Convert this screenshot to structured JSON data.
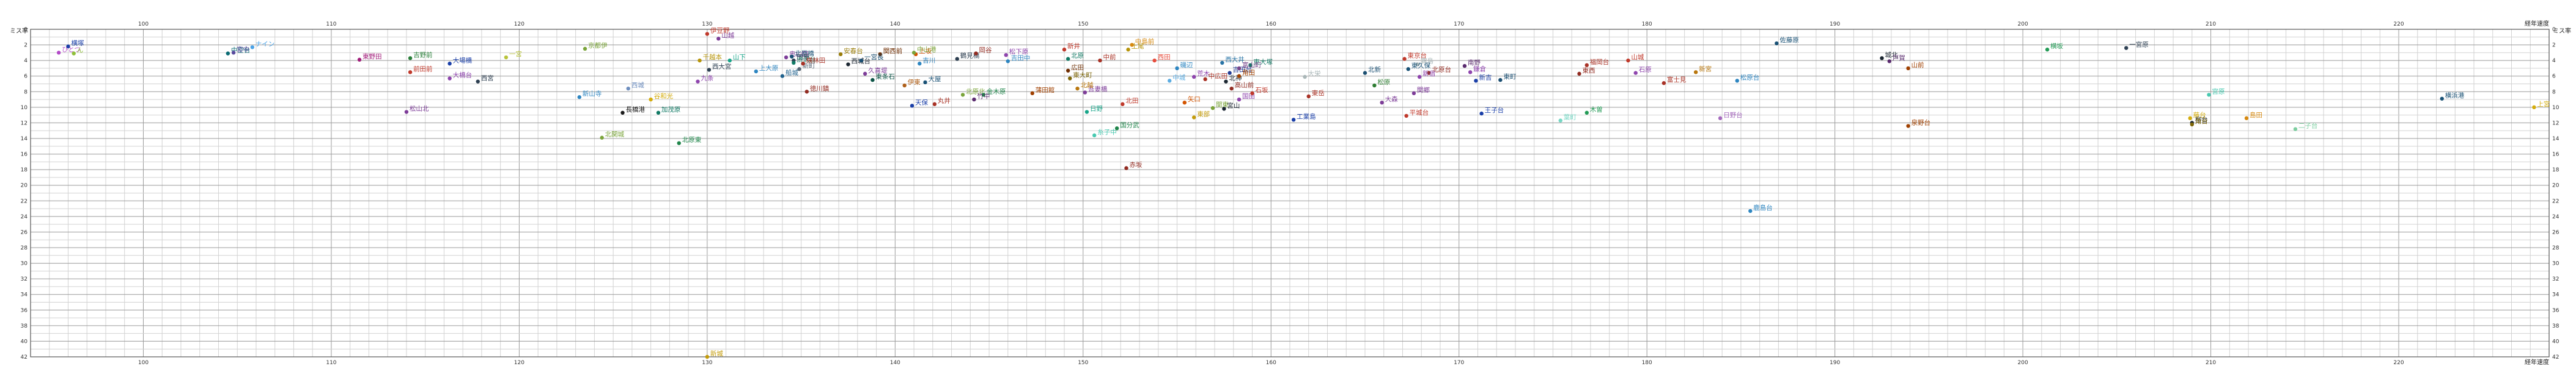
{
  "chart_data": {
    "type": "scatter",
    "title": "",
    "xlabel": "経年速度",
    "ylabel": "ミス率",
    "xlim": [
      94,
      228
    ],
    "ylim": [
      0,
      42
    ],
    "x_ticks": [
      100,
      110,
      120,
      130,
      140,
      150,
      160,
      170,
      180,
      190,
      200,
      210,
      220
    ],
    "y_ticks": [
      0,
      2,
      4,
      6,
      8,
      10,
      12,
      14,
      16,
      18,
      20,
      22,
      24,
      26,
      28,
      30,
      32,
      34,
      36,
      38,
      40,
      42
    ],
    "grid": true,
    "series": [
      {
        "label": "横塚",
        "x": 96.0,
        "y": 2.2,
        "color": "#1a3fa8"
      },
      {
        "label": "ひとつ",
        "x": 95.5,
        "y": 3.0,
        "color": "#b34bc8"
      },
      {
        "label": "ん",
        "x": 96.3,
        "y": 3.1,
        "color": "#8fbf3a"
      },
      {
        "label": "中空台",
        "x": 104.5,
        "y": 3.1,
        "color": "#0a6b74"
      },
      {
        "label": "ナイン",
        "x": 105.8,
        "y": 2.3,
        "color": "#4aa3e8"
      },
      {
        "label": "宮中",
        "x": 104.8,
        "y": 3.0,
        "color": "#5a4b9e"
      },
      {
        "label": "東野田",
        "x": 111.5,
        "y": 3.9,
        "color": "#a11c7a"
      },
      {
        "label": "吉野前",
        "x": 114.2,
        "y": 3.7,
        "color": "#2a7f3a"
      },
      {
        "label": "大場橋",
        "x": 116.3,
        "y": 4.4,
        "color": "#1a3fa8"
      },
      {
        "label": "前田前",
        "x": 114.2,
        "y": 5.5,
        "color": "#c0392b"
      },
      {
        "label": "大橋台",
        "x": 116.3,
        "y": 6.3,
        "color": "#8e44ad"
      },
      {
        "label": "一宮",
        "x": 119.3,
        "y": 3.6,
        "color": "#b8c33a"
      },
      {
        "label": "西宮",
        "x": 117.8,
        "y": 6.7,
        "color": "#2c3e50"
      },
      {
        "label": "松山北",
        "x": 114.0,
        "y": 10.6,
        "color": "#7d3c98"
      },
      {
        "label": "京都伊",
        "x": 123.5,
        "y": 2.5,
        "color": "#7aa43a"
      },
      {
        "label": "新山寺",
        "x": 123.2,
        "y": 8.7,
        "color": "#2e86c1"
      },
      {
        "label": "西城",
        "x": 125.8,
        "y": 7.6,
        "color": "#6f8fbf"
      },
      {
        "label": "長橋港",
        "x": 125.5,
        "y": 10.7,
        "color": "#1b1b1b"
      },
      {
        "label": "加茂原",
        "x": 127.4,
        "y": 10.7,
        "color": "#117a65"
      },
      {
        "label": "北関城",
        "x": 124.4,
        "y": 13.9,
        "color": "#7aa43a"
      },
      {
        "label": "谷和光",
        "x": 127.0,
        "y": 9.0,
        "color": "#d4ac0d"
      },
      {
        "label": "北原東",
        "x": 128.5,
        "y": 14.6,
        "color": "#1e8449"
      },
      {
        "label": "九条",
        "x": 129.5,
        "y": 6.7,
        "color": "#8e44ad"
      },
      {
        "label": "伊豆野",
        "x": 130.0,
        "y": 0.6,
        "color": "#c0392b"
      },
      {
        "label": "山越",
        "x": 130.6,
        "y": 1.2,
        "color": "#7d3c98"
      },
      {
        "label": "千越本",
        "x": 129.6,
        "y": 4.0,
        "color": "#b7950b"
      },
      {
        "label": "西大宮",
        "x": 130.1,
        "y": 5.2,
        "color": "#2e4053"
      },
      {
        "label": "上大原",
        "x": 132.6,
        "y": 5.4,
        "color": "#2e86c1"
      },
      {
        "label": "奥山田",
        "x": 134.2,
        "y": 3.6,
        "color": "#7d3c98"
      },
      {
        "label": "北原橋",
        "x": 134.5,
        "y": 3.5,
        "color": "#1a5276"
      },
      {
        "label": "山下",
        "x": 131.2,
        "y": 4.0,
        "color": "#17a589"
      },
      {
        "label": "田原",
        "x": 134.6,
        "y": 4.0,
        "color": "#2c3e50"
      },
      {
        "label": "渋沢台",
        "x": 134.6,
        "y": 4.3,
        "color": "#117a65"
      },
      {
        "label": "新町",
        "x": 134.9,
        "y": 5.1,
        "color": "#566573"
      },
      {
        "label": "船城",
        "x": 134.0,
        "y": 6.0,
        "color": "#1f618d"
      },
      {
        "label": "横林田",
        "x": 135.1,
        "y": 4.4,
        "color": "#a93226"
      },
      {
        "label": "徳川鎮",
        "x": 135.3,
        "y": 8.0,
        "color": "#922b21"
      },
      {
        "label": "安春台",
        "x": 137.1,
        "y": 3.2,
        "color": "#9a7d0a"
      },
      {
        "label": "西城台",
        "x": 137.5,
        "y": 4.5,
        "color": "#1b2631"
      },
      {
        "label": "久喜堤",
        "x": 138.4,
        "y": 5.7,
        "color": "#7d3c98"
      },
      {
        "label": "関西前",
        "x": 139.2,
        "y": 3.2,
        "color": "#6e2c00"
      },
      {
        "label": "東条石",
        "x": 138.8,
        "y": 6.5,
        "color": "#0b5345"
      },
      {
        "label": "一宮長",
        "x": 138.2,
        "y": 4.0,
        "color": "#1b4f72"
      },
      {
        "label": "伊東",
        "x": 140.5,
        "y": 7.2,
        "color": "#af601a"
      },
      {
        "label": "上坂",
        "x": 141.1,
        "y": 3.2,
        "color": "#d35400"
      },
      {
        "label": "中山港",
        "x": 141.0,
        "y": 3.0,
        "color": "#7aa43a"
      },
      {
        "label": "吉川",
        "x": 141.3,
        "y": 4.4,
        "color": "#2e86c1"
      },
      {
        "label": "大屋",
        "x": 141.6,
        "y": 6.8,
        "color": "#1a5276"
      },
      {
        "label": "丸井",
        "x": 142.1,
        "y": 9.6,
        "color": "#a93226"
      },
      {
        "label": "天保",
        "x": 140.9,
        "y": 9.8,
        "color": "#1a3fa8"
      },
      {
        "label": "鶴見橋",
        "x": 143.3,
        "y": 3.8,
        "color": "#2c3e50"
      },
      {
        "label": "北原北",
        "x": 143.6,
        "y": 8.4,
        "color": "#7aa43a"
      },
      {
        "label": "岡谷",
        "x": 144.3,
        "y": 3.1,
        "color": "#922b21"
      },
      {
        "label": "金木原",
        "x": 144.7,
        "y": 8.4,
        "color": "#1e8449"
      },
      {
        "label": "竹中",
        "x": 144.2,
        "y": 9.0,
        "color": "#5b2c6f"
      },
      {
        "label": "松下原",
        "x": 145.9,
        "y": 3.3,
        "color": "#8e44ad"
      },
      {
        "label": "吉田中",
        "x": 146.0,
        "y": 4.1,
        "color": "#2e86c1"
      },
      {
        "label": "蒲田館",
        "x": 147.3,
        "y": 8.2,
        "color": "#a04000"
      },
      {
        "label": "新井",
        "x": 149.0,
        "y": 2.6,
        "color": "#c0392b"
      },
      {
        "label": "北原",
        "x": 149.2,
        "y": 3.8,
        "color": "#117a65"
      },
      {
        "label": "広田",
        "x": 149.2,
        "y": 5.3,
        "color": "#6e2c00"
      },
      {
        "label": "東大町",
        "x": 149.3,
        "y": 6.3,
        "color": "#7d6608"
      },
      {
        "label": "吾妻橋",
        "x": 150.1,
        "y": 8.1,
        "color": "#7d3c98"
      },
      {
        "label": "北越",
        "x": 149.7,
        "y": 7.6,
        "color": "#b9770e"
      },
      {
        "label": "中前",
        "x": 150.9,
        "y": 4.0,
        "color": "#a93226"
      },
      {
        "label": "中島前",
        "x": 152.6,
        "y": 2.0,
        "color": "#d68910"
      },
      {
        "label": "上尾",
        "x": 152.4,
        "y": 2.6,
        "color": "#b7950b"
      },
      {
        "label": "北田",
        "x": 152.1,
        "y": 9.6,
        "color": "#c0392b"
      },
      {
        "label": "日野",
        "x": 150.2,
        "y": 10.6,
        "color": "#17a589"
      },
      {
        "label": "糸子中",
        "x": 150.6,
        "y": 13.6,
        "color": "#48c9b0"
      },
      {
        "label": "国分武",
        "x": 151.8,
        "y": 12.7,
        "color": "#1e8449"
      },
      {
        "label": "赤坂",
        "x": 152.3,
        "y": 17.8,
        "color": "#922b21"
      },
      {
        "label": "西田",
        "x": 153.8,
        "y": 4.0,
        "color": "#e74c3c"
      },
      {
        "label": "磯辺",
        "x": 155.0,
        "y": 5.0,
        "color": "#2e86c1"
      },
      {
        "label": "中城",
        "x": 154.6,
        "y": 6.6,
        "color": "#5dade2"
      },
      {
        "label": "荒木",
        "x": 155.9,
        "y": 6.1,
        "color": "#8e44ad"
      },
      {
        "label": "中広田",
        "x": 156.5,
        "y": 6.4,
        "color": "#a93226"
      },
      {
        "label": "矢口",
        "x": 155.4,
        "y": 9.4,
        "color": "#d35400"
      },
      {
        "label": "東部",
        "x": 155.9,
        "y": 11.3,
        "color": "#c39b0a"
      },
      {
        "label": "関東",
        "x": 156.9,
        "y": 10.1,
        "color": "#7aa43a"
      },
      {
        "label": "西大井",
        "x": 157.4,
        "y": 4.3,
        "color": "#2874a6"
      },
      {
        "label": "吉田台",
        "x": 157.8,
        "y": 5.6,
        "color": "#1f3a93"
      },
      {
        "label": "北神",
        "x": 157.6,
        "y": 6.7,
        "color": "#1b2631"
      },
      {
        "label": "高山前",
        "x": 157.9,
        "y": 7.6,
        "color": "#922b21"
      },
      {
        "label": "東大塚",
        "x": 158.9,
        "y": 4.6,
        "color": "#117a65"
      },
      {
        "label": "富山町",
        "x": 158.3,
        "y": 5.0,
        "color": "#76448a"
      },
      {
        "label": "角田",
        "x": 158.3,
        "y": 6.0,
        "color": "#a04000"
      },
      {
        "label": "国田",
        "x": 158.3,
        "y": 9.0,
        "color": "#8e44ad"
      },
      {
        "label": "石坂",
        "x": 159.0,
        "y": 8.2,
        "color": "#c0392b"
      },
      {
        "label": "宮山",
        "x": 157.5,
        "y": 10.2,
        "color": "#1b2631"
      },
      {
        "label": "工業島",
        "x": 161.2,
        "y": 11.6,
        "color": "#1a3fa8"
      },
      {
        "label": "大栄",
        "x": 161.8,
        "y": 6.1,
        "color": "#aab7b8"
      },
      {
        "label": "東岳",
        "x": 162.0,
        "y": 8.6,
        "color": "#a93226"
      },
      {
        "label": "北新",
        "x": 165.0,
        "y": 5.6,
        "color": "#1b4f72"
      },
      {
        "label": "松原",
        "x": 165.5,
        "y": 7.2,
        "color": "#2e7d32"
      },
      {
        "label": "大森",
        "x": 165.9,
        "y": 9.4,
        "color": "#7d3c98"
      },
      {
        "label": "東京台",
        "x": 167.1,
        "y": 3.8,
        "color": "#c0392b"
      },
      {
        "label": "霧島",
        "x": 167.8,
        "y": 4.5,
        "color": "#aab7b8"
      },
      {
        "label": "東久保",
        "x": 167.3,
        "y": 5.1,
        "color": "#1a5276"
      },
      {
        "label": "北原台",
        "x": 168.4,
        "y": 5.6,
        "color": "#922b21"
      },
      {
        "label": "新宿",
        "x": 167.9,
        "y": 6.1,
        "color": "#8e44ad"
      },
      {
        "label": "関郷",
        "x": 167.6,
        "y": 8.2,
        "color": "#7d3c98"
      },
      {
        "label": "平城台",
        "x": 167.2,
        "y": 11.1,
        "color": "#c0392b"
      },
      {
        "label": "南野",
        "x": 170.3,
        "y": 4.7,
        "color": "#5b2c6f"
      },
      {
        "label": "鎌倉",
        "x": 170.6,
        "y": 5.5,
        "color": "#8e44ad"
      },
      {
        "label": "新吉",
        "x": 170.9,
        "y": 6.6,
        "color": "#1a3fa8"
      },
      {
        "label": "東町",
        "x": 172.2,
        "y": 6.5,
        "color": "#1b4f72"
      },
      {
        "label": "王子台",
        "x": 171.2,
        "y": 10.8,
        "color": "#1a3fa8"
      },
      {
        "label": "葉町",
        "x": 175.4,
        "y": 11.7,
        "color": "#76d7c4"
      },
      {
        "label": "木曽",
        "x": 176.8,
        "y": 10.7,
        "color": "#239b56"
      },
      {
        "label": "福岡台",
        "x": 176.8,
        "y": 4.6,
        "color": "#a93226"
      },
      {
        "label": "東西",
        "x": 176.4,
        "y": 5.7,
        "color": "#922b21"
      },
      {
        "label": "山城",
        "x": 179.0,
        "y": 4.0,
        "color": "#c0392b"
      },
      {
        "label": "石原",
        "x": 179.4,
        "y": 5.6,
        "color": "#8e44ad"
      },
      {
        "label": "富士見",
        "x": 180.9,
        "y": 6.9,
        "color": "#a93226"
      },
      {
        "label": "新宮",
        "x": 182.6,
        "y": 5.5,
        "color": "#b9770e"
      },
      {
        "label": "日野台",
        "x": 183.9,
        "y": 11.4,
        "color": "#a569bd"
      },
      {
        "label": "松原台",
        "x": 184.8,
        "y": 6.6,
        "color": "#2e86c1"
      },
      {
        "label": "佐藤原",
        "x": 186.9,
        "y": 1.8,
        "color": "#1a5276"
      },
      {
        "label": "鹿島台",
        "x": 185.5,
        "y": 23.3,
        "color": "#2e86c1"
      },
      {
        "label": "城北",
        "x": 192.5,
        "y": 3.7,
        "color": "#1b2631"
      },
      {
        "label": "戸賀",
        "x": 192.9,
        "y": 4.1,
        "color": "#5b2c6f"
      },
      {
        "label": "山前",
        "x": 193.9,
        "y": 5.0,
        "color": "#a04000"
      },
      {
        "label": "泉野台",
        "x": 193.9,
        "y": 12.4,
        "color": "#a04000"
      },
      {
        "label": "横坂",
        "x": 201.3,
        "y": 2.6,
        "color": "#239b56"
      },
      {
        "label": "一宮原",
        "x": 205.5,
        "y": 2.4,
        "color": "#2e4053"
      },
      {
        "label": "宮原",
        "x": 209.9,
        "y": 8.4,
        "color": "#48c9b0"
      },
      {
        "label": "藤台",
        "x": 208.9,
        "y": 11.4,
        "color": "#d4ac0d"
      },
      {
        "label": "柳台",
        "x": 209.0,
        "y": 12.0,
        "color": "#1b2631"
      },
      {
        "label": "角台",
        "x": 209.0,
        "y": 12.2,
        "color": "#7d6608"
      },
      {
        "label": "島田",
        "x": 211.9,
        "y": 11.4,
        "color": "#d68910"
      },
      {
        "label": "二子台",
        "x": 214.5,
        "y": 12.8,
        "color": "#7dcea0"
      },
      {
        "label": "横浜港",
        "x": 222.3,
        "y": 8.9,
        "color": "#1a5276"
      },
      {
        "label": "上宮",
        "x": 227.2,
        "y": 10.0,
        "color": "#d4ac0d"
      },
      {
        "label": "新城",
        "x": 130.0,
        "y": 42.0,
        "color": "#c39b0a"
      }
    ]
  }
}
